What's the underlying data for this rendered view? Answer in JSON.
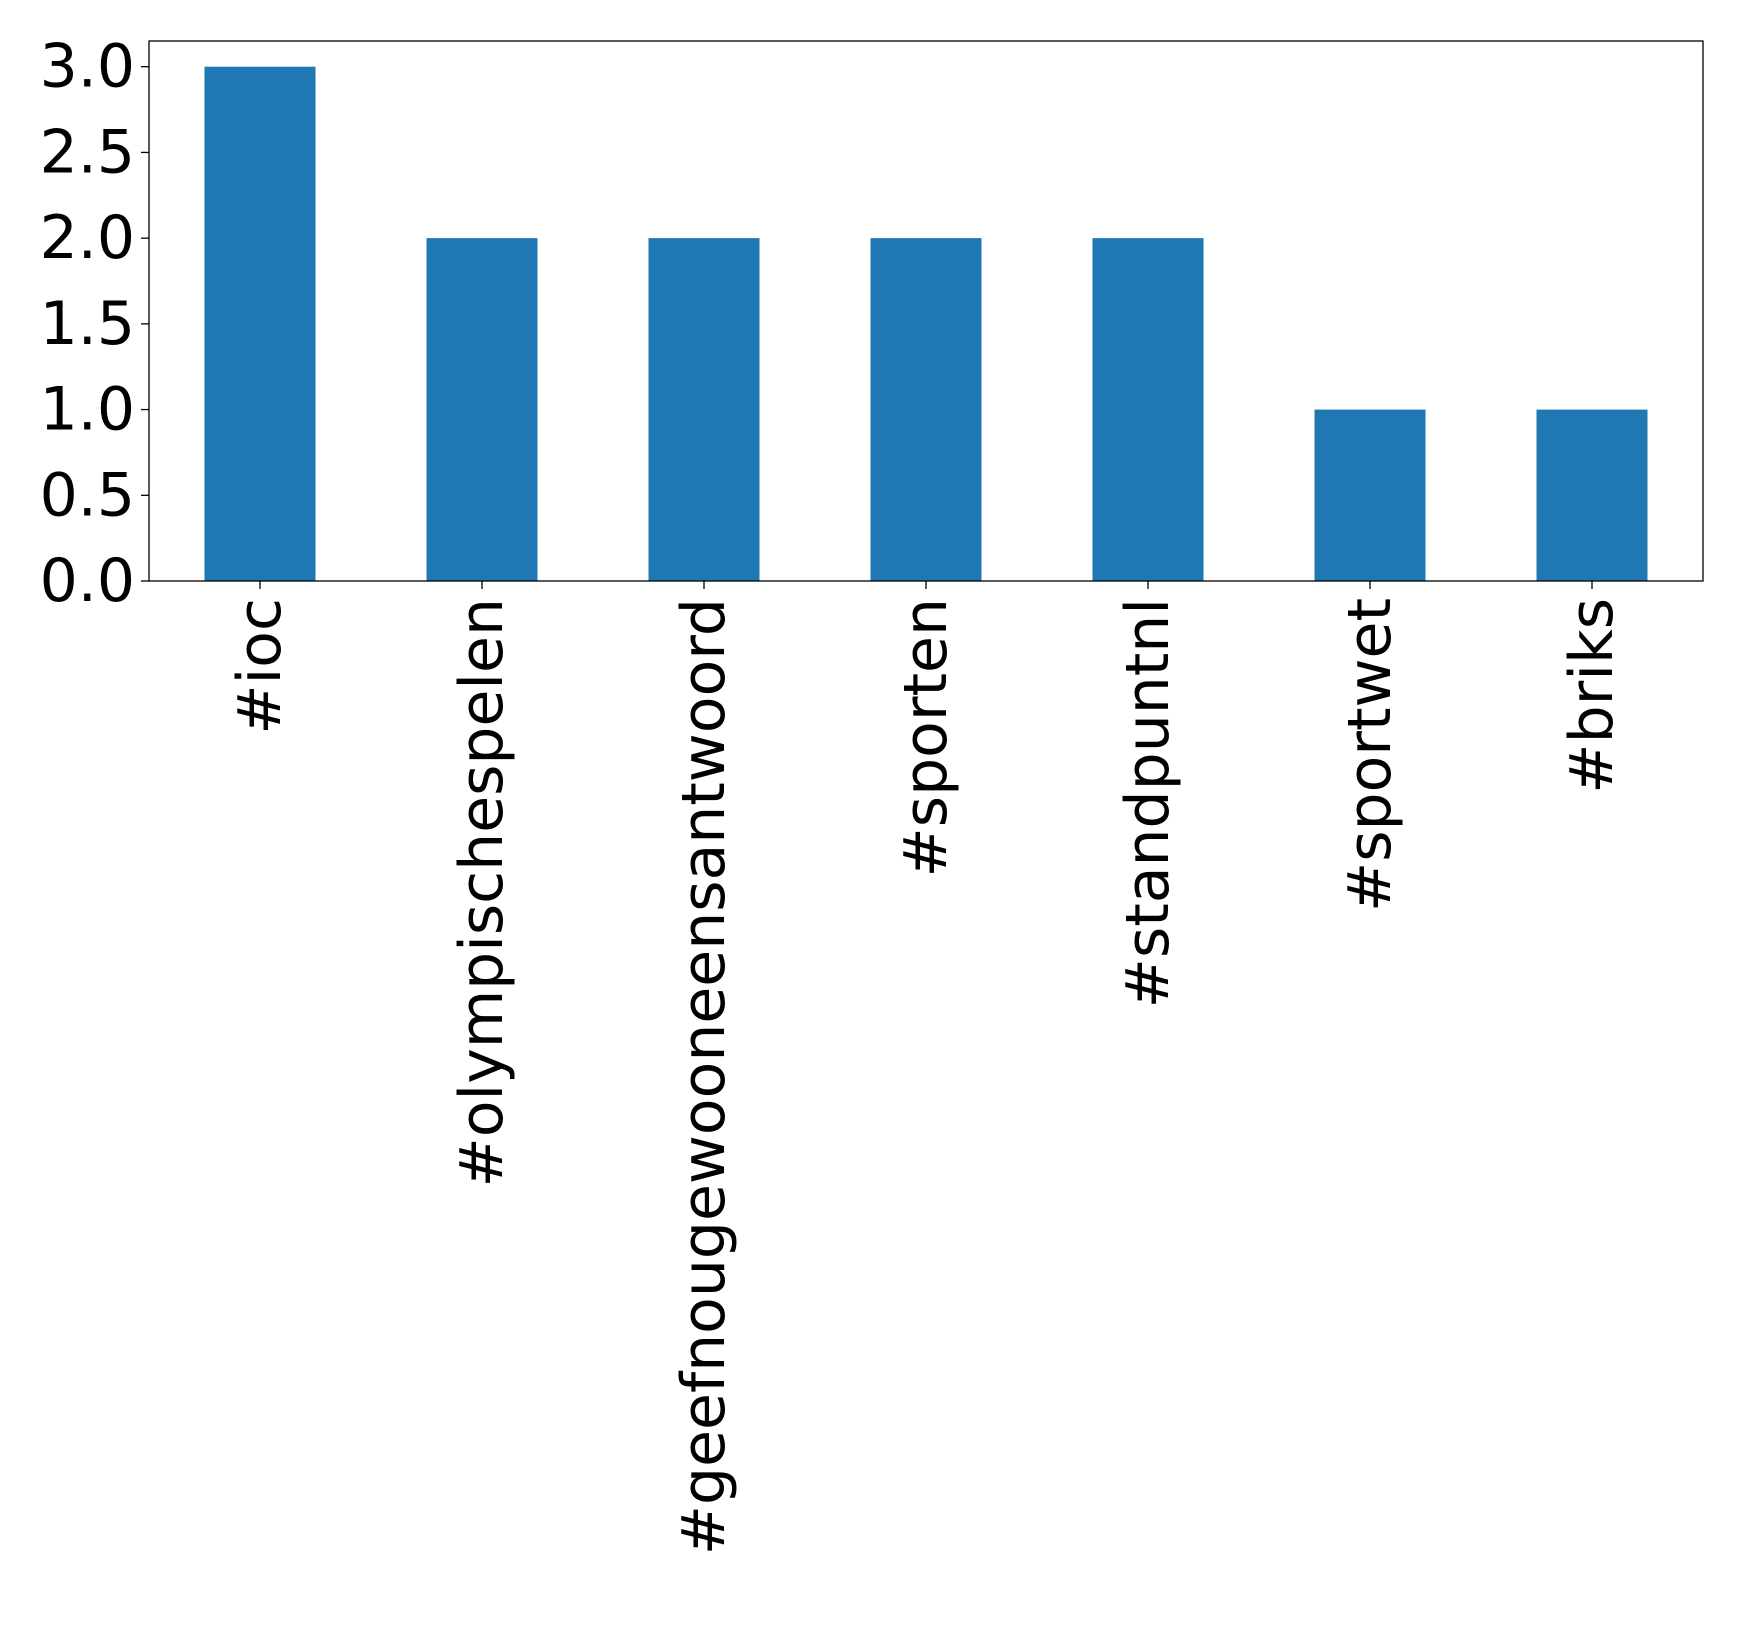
{
  "chart_data": {
    "type": "bar",
    "categories": [
      "#ioc",
      "#olympischespelen",
      "#geefnougewooneensantwoord",
      "#sporten",
      "#standpuntnl",
      "#sportwet",
      "#briks"
    ],
    "values": [
      3,
      2,
      2,
      2,
      2,
      1,
      1
    ],
    "title": "",
    "xlabel": "",
    "ylabel": "",
    "ylim": [
      0,
      3.15
    ],
    "yticks": [
      "0.0",
      "0.5",
      "1.0",
      "1.5",
      "2.0",
      "2.5",
      "3.0"
    ],
    "ytick_values": [
      0,
      0.5,
      1,
      1.5,
      2,
      2.5,
      3
    ],
    "grid": false,
    "legend": "none",
    "bar_color": "#1f77b4"
  }
}
